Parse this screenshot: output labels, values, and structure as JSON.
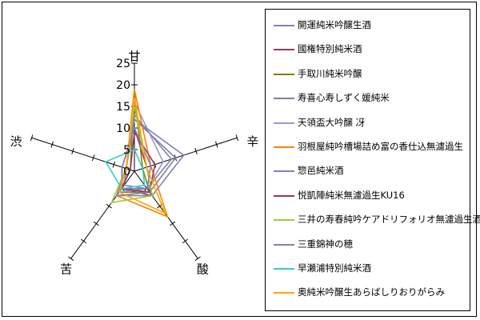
{
  "chart_data": {
    "type": "radar",
    "axes": [
      "甘",
      "辛",
      "酸",
      "苦",
      "渋"
    ],
    "rlim": [
      0,
      25
    ],
    "rticks": [
      "0",
      "5",
      "10",
      "15",
      "20",
      "25"
    ],
    "grid": false,
    "legend": "right",
    "series": [
      {
        "name": "開運純米吟醸生酒",
        "color": "#7f7fbf",
        "values": [
          13,
          9,
          5,
          4,
          2
        ]
      },
      {
        "name": "國権特別純米酒",
        "color": "#993366",
        "values": [
          10,
          3,
          7,
          5,
          3
        ]
      },
      {
        "name": "手取川純米吟醸",
        "color": "#808000",
        "values": [
          18,
          2,
          6,
          6,
          1
        ]
      },
      {
        "name": "寿喜心寿しずく媛純米",
        "color": "#8080a0",
        "values": [
          12,
          10,
          6,
          7,
          2
        ]
      },
      {
        "name": "天領盃大吟醸 冴",
        "color": "#9999cc",
        "values": [
          16,
          7,
          5,
          6,
          2
        ]
      },
      {
        "name": "羽根屋純吟槽場詰め富の香仕込無濾過生",
        "color": "#ff8000",
        "values": [
          19,
          4,
          13,
          7,
          2
        ]
      },
      {
        "name": "惣邑純米酒",
        "color": "#7f7fbf",
        "values": [
          12,
          12,
          7,
          7,
          2
        ]
      },
      {
        "name": "悦凱陣純米無濾過生KU16",
        "color": "#993366",
        "values": [
          9,
          5,
          6,
          5,
          1
        ]
      },
      {
        "name": "三井の寿春純吟ケアドリフォリオ無濾過生酒",
        "color": "#9acd32",
        "values": [
          15,
          3,
          7,
          9,
          2
        ]
      },
      {
        "name": "三重錦神の穂",
        "color": "#7f7fbf",
        "values": [
          10,
          4,
          5,
          5,
          3
        ]
      },
      {
        "name": "早瀬浦特別純米酒",
        "color": "#33cccc",
        "values": [
          5,
          2,
          4,
          5,
          7
        ]
      },
      {
        "name": "奥純米吟醸生あらばしりおりがらみ",
        "color": "#ffa500",
        "values": [
          17,
          3,
          12,
          6,
          2
        ]
      }
    ]
  }
}
